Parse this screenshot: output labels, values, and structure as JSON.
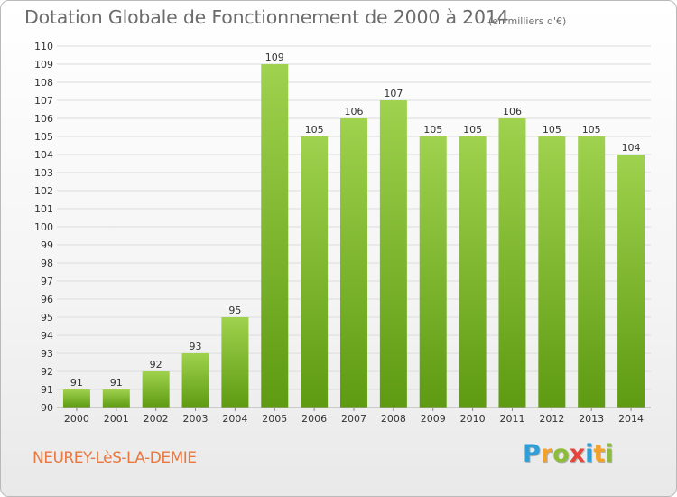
{
  "header": {
    "title": "Dotation Globale de Fonctionnement de 2000 à 2014",
    "unit": "(en milliers d'€)"
  },
  "footer": {
    "commune": "NEUREY-LèS-LA-DEMIE",
    "logo": {
      "letters": [
        "P",
        "r",
        "o",
        "x",
        "i",
        "t",
        "i"
      ],
      "colors": [
        "#2f9fd8",
        "#f2a22c",
        "#8dbb3a",
        "#e2453c",
        "#2f9fd8",
        "#f2a22c",
        "#8dbb3a"
      ]
    }
  },
  "colors": {
    "bar_light": "#9fd24e",
    "bar_dark": "#5e9a12",
    "grid": "#dcdcdc",
    "axis_text": "#333333"
  },
  "chart_data": {
    "type": "bar",
    "title": "Dotation Globale de Fonctionnement de 2000 à 2014",
    "xlabel": "",
    "ylabel": "",
    "categories": [
      "2000",
      "2001",
      "2002",
      "2003",
      "2004",
      "2005",
      "2006",
      "2007",
      "2008",
      "2009",
      "2010",
      "2011",
      "2012",
      "2013",
      "2014"
    ],
    "values": [
      91,
      91,
      92,
      93,
      95,
      109,
      105,
      106,
      107,
      105,
      105,
      106,
      105,
      105,
      104
    ],
    "ylim": [
      90,
      110
    ],
    "yticks": [
      90,
      91,
      92,
      93,
      94,
      95,
      96,
      97,
      98,
      99,
      100,
      101,
      102,
      103,
      104,
      105,
      106,
      107,
      108,
      109,
      110
    ],
    "grid": true,
    "data_labels": true
  }
}
